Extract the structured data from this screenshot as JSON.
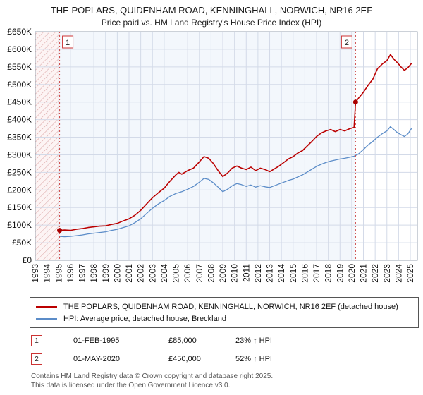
{
  "title": "THE POPLARS, QUIDENHAM ROAD, KENNINGHALL, NORWICH, NR16 2EF",
  "subtitle": "Price paid vs. HM Land Registry's House Price Index (HPI)",
  "legend": [
    {
      "label": "THE POPLARS, QUIDENHAM ROAD, KENNINGHALL, NORWICH, NR16 2EF (detached house)",
      "color": "#bb0000"
    },
    {
      "label": "HPI: Average price, detached house, Breckland",
      "color": "#5b8cc8"
    }
  ],
  "annotations": [
    {
      "num": "1",
      "date": "01-FEB-1995",
      "price": "£85,000",
      "hpi": "23% ↑ HPI"
    },
    {
      "num": "2",
      "date": "01-MAY-2020",
      "price": "£450,000",
      "hpi": "52% ↑ HPI"
    }
  ],
  "footer": {
    "line1": "Contains HM Land Registry data © Crown copyright and database right 2025.",
    "line2": "This data is licensed under the Open Government Licence v3.0."
  },
  "chart_data": {
    "type": "line",
    "title": "THE POPLARS, QUIDENHAM ROAD, KENNINGHALL, NORWICH, NR16 2EF — Price paid vs. HPI",
    "xlabel": "",
    "ylabel": "",
    "grid": true,
    "legend_position": "bottom",
    "xlim": [
      1993,
      2025.6
    ],
    "ylim": [
      0,
      650000
    ],
    "x_tick_years": [
      "1993",
      "1994",
      "1995",
      "1996",
      "1997",
      "1998",
      "1999",
      "2000",
      "2001",
      "2002",
      "2003",
      "2004",
      "2005",
      "2006",
      "2007",
      "2008",
      "2009",
      "2010",
      "2011",
      "2012",
      "2013",
      "2014",
      "2015",
      "2016",
      "2017",
      "2018",
      "2019",
      "2020",
      "2021",
      "2022",
      "2023",
      "2024",
      "2025"
    ],
    "y_tick_values": [
      0,
      50000,
      100000,
      150000,
      200000,
      250000,
      300000,
      350000,
      400000,
      450000,
      500000,
      550000,
      600000,
      650000
    ],
    "y_tick_labels": [
      "£0",
      "£50K",
      "£100K",
      "£150K",
      "£200K",
      "£250K",
      "£300K",
      "£350K",
      "£400K",
      "£450K",
      "£500K",
      "£550K",
      "£600K",
      "£650K"
    ],
    "hatch_end_x": 1995.08,
    "sales": [
      {
        "label": "1",
        "x": 1995.08,
        "y": 85000
      },
      {
        "label": "2",
        "x": 2020.33,
        "y": 450000
      }
    ],
    "series": [
      {
        "id": "property",
        "name": "THE POPLARS, QUIDENHAM ROAD, KENNINGHALL, NORWICH, NR16 2EF (detached house)",
        "color": "#bb0000",
        "width": 1.6,
        "points": [
          [
            1995.08,
            85000
          ],
          [
            1995.5,
            86000
          ],
          [
            1996,
            85000
          ],
          [
            1996.5,
            88000
          ],
          [
            1997,
            90000
          ],
          [
            1997.5,
            93000
          ],
          [
            1998,
            95000
          ],
          [
            1998.5,
            97000
          ],
          [
            1999,
            98000
          ],
          [
            1999.5,
            102000
          ],
          [
            2000,
            105000
          ],
          [
            2000.5,
            112000
          ],
          [
            2001,
            118000
          ],
          [
            2001.5,
            128000
          ],
          [
            2002,
            142000
          ],
          [
            2002.5,
            160000
          ],
          [
            2003,
            178000
          ],
          [
            2003.5,
            192000
          ],
          [
            2004,
            205000
          ],
          [
            2004.5,
            225000
          ],
          [
            2005,
            243000
          ],
          [
            2005.25,
            250000
          ],
          [
            2005.5,
            245000
          ],
          [
            2006,
            255000
          ],
          [
            2006.5,
            262000
          ],
          [
            2007,
            280000
          ],
          [
            2007.4,
            295000
          ],
          [
            2007.8,
            290000
          ],
          [
            2008.2,
            275000
          ],
          [
            2008.6,
            255000
          ],
          [
            2009,
            238000
          ],
          [
            2009.4,
            248000
          ],
          [
            2009.8,
            262000
          ],
          [
            2010.2,
            268000
          ],
          [
            2010.6,
            262000
          ],
          [
            2011,
            258000
          ],
          [
            2011.4,
            265000
          ],
          [
            2011.8,
            255000
          ],
          [
            2012.2,
            262000
          ],
          [
            2012.6,
            258000
          ],
          [
            2013,
            252000
          ],
          [
            2013.4,
            260000
          ],
          [
            2013.8,
            268000
          ],
          [
            2014.2,
            278000
          ],
          [
            2014.6,
            288000
          ],
          [
            2015,
            295000
          ],
          [
            2015.4,
            305000
          ],
          [
            2015.8,
            312000
          ],
          [
            2016.2,
            325000
          ],
          [
            2016.6,
            338000
          ],
          [
            2017,
            352000
          ],
          [
            2017.4,
            362000
          ],
          [
            2017.8,
            368000
          ],
          [
            2018.2,
            372000
          ],
          [
            2018.6,
            366000
          ],
          [
            2019,
            372000
          ],
          [
            2019.4,
            368000
          ],
          [
            2019.8,
            374000
          ],
          [
            2020.2,
            378000
          ],
          [
            2020.33,
            450000
          ],
          [
            2020.6,
            462000
          ],
          [
            2021,
            478000
          ],
          [
            2021.4,
            498000
          ],
          [
            2021.8,
            515000
          ],
          [
            2022.2,
            545000
          ],
          [
            2022.6,
            558000
          ],
          [
            2023,
            568000
          ],
          [
            2023.3,
            585000
          ],
          [
            2023.6,
            572000
          ],
          [
            2023.9,
            562000
          ],
          [
            2024.2,
            550000
          ],
          [
            2024.5,
            540000
          ],
          [
            2024.8,
            548000
          ],
          [
            2025.1,
            560000
          ]
        ]
      },
      {
        "id": "hpi",
        "name": "HPI: Average price, detached house, Breckland",
        "color": "#5b8cc8",
        "width": 1.3,
        "points": [
          [
            1995.08,
            68000
          ],
          [
            1995.5,
            67000
          ],
          [
            1996,
            68000
          ],
          [
            1996.5,
            70000
          ],
          [
            1997,
            72000
          ],
          [
            1997.5,
            75000
          ],
          [
            1998,
            77000
          ],
          [
            1998.5,
            79000
          ],
          [
            1999,
            81000
          ],
          [
            1999.5,
            85000
          ],
          [
            2000,
            88000
          ],
          [
            2000.5,
            93000
          ],
          [
            2001,
            98000
          ],
          [
            2001.5,
            107000
          ],
          [
            2002,
            118000
          ],
          [
            2002.5,
            133000
          ],
          [
            2003,
            148000
          ],
          [
            2003.5,
            160000
          ],
          [
            2004,
            170000
          ],
          [
            2004.5,
            182000
          ],
          [
            2005,
            190000
          ],
          [
            2005.5,
            195000
          ],
          [
            2006,
            202000
          ],
          [
            2006.5,
            210000
          ],
          [
            2007,
            222000
          ],
          [
            2007.4,
            233000
          ],
          [
            2007.8,
            230000
          ],
          [
            2008.2,
            220000
          ],
          [
            2008.6,
            208000
          ],
          [
            2009,
            195000
          ],
          [
            2009.4,
            202000
          ],
          [
            2009.8,
            212000
          ],
          [
            2010.2,
            218000
          ],
          [
            2010.6,
            215000
          ],
          [
            2011,
            210000
          ],
          [
            2011.4,
            214000
          ],
          [
            2011.8,
            208000
          ],
          [
            2012.2,
            212000
          ],
          [
            2012.6,
            209000
          ],
          [
            2013,
            207000
          ],
          [
            2013.4,
            212000
          ],
          [
            2013.8,
            217000
          ],
          [
            2014.2,
            222000
          ],
          [
            2014.6,
            227000
          ],
          [
            2015,
            231000
          ],
          [
            2015.4,
            237000
          ],
          [
            2015.8,
            243000
          ],
          [
            2016.2,
            251000
          ],
          [
            2016.6,
            259000
          ],
          [
            2017,
            267000
          ],
          [
            2017.4,
            273000
          ],
          [
            2017.8,
            278000
          ],
          [
            2018.2,
            282000
          ],
          [
            2018.6,
            285000
          ],
          [
            2019,
            288000
          ],
          [
            2019.4,
            290000
          ],
          [
            2019.8,
            293000
          ],
          [
            2020.2,
            296000
          ],
          [
            2020.6,
            303000
          ],
          [
            2021,
            315000
          ],
          [
            2021.4,
            328000
          ],
          [
            2021.8,
            338000
          ],
          [
            2022.2,
            350000
          ],
          [
            2022.6,
            360000
          ],
          [
            2023,
            368000
          ],
          [
            2023.3,
            380000
          ],
          [
            2023.6,
            372000
          ],
          [
            2023.9,
            363000
          ],
          [
            2024.2,
            357000
          ],
          [
            2024.5,
            352000
          ],
          [
            2024.8,
            360000
          ],
          [
            2025.1,
            375000
          ]
        ]
      }
    ]
  }
}
